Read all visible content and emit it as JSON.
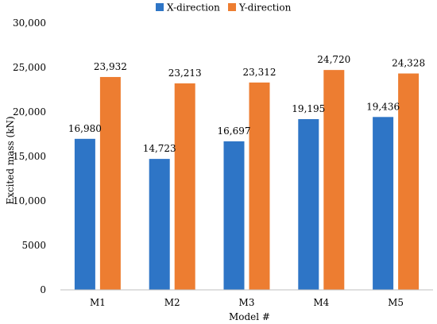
{
  "chart_data": {
    "type": "bar",
    "categories": [
      "M1",
      "M2",
      "M3",
      "M4",
      "M5"
    ],
    "series": [
      {
        "name": "X-direction",
        "values": [
          16980,
          14723,
          16697,
          19195,
          19436
        ],
        "labels": [
          "16,980",
          "14,723",
          "16,697",
          "19,195",
          "19,436"
        ],
        "color": "#2e75c6"
      },
      {
        "name": "Y-direction",
        "values": [
          23932,
          23213,
          23312,
          24720,
          24328
        ],
        "labels": [
          "23,932",
          "23,213",
          "23,312",
          "24,720",
          "24,328"
        ],
        "color": "#ed7d31"
      }
    ],
    "xlabel": "Model #",
    "ylabel": "Excited mass (kN)",
    "ylim": [
      0,
      30000
    ],
    "yticks": [
      0,
      5000,
      10000,
      15000,
      20000,
      25000,
      30000
    ],
    "ytick_labels": [
      "0",
      "5000",
      "10,000",
      "15,000",
      "20,000",
      "25,000",
      "30,000"
    ],
    "grid": false,
    "legend_position": "top"
  }
}
